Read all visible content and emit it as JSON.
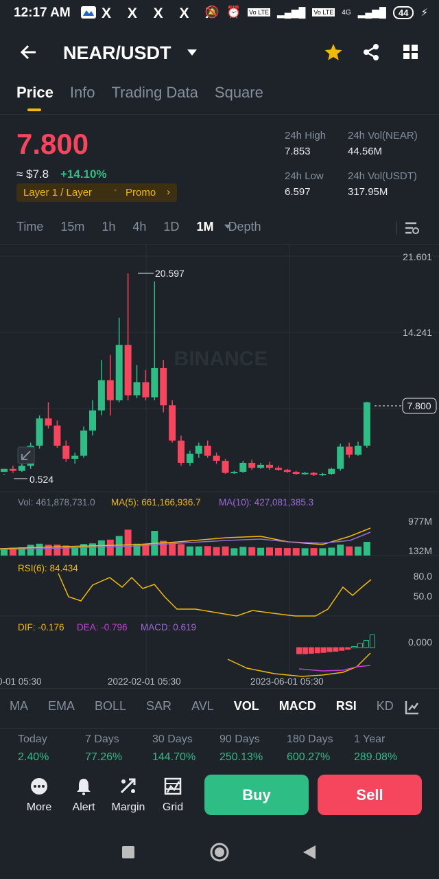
{
  "status_bar": {
    "time": "12:17 AM",
    "x_icons": "X X X X X",
    "lte1": "Vo LTE",
    "lte2": "Vo LTE",
    "net": "4G",
    "battery": "44"
  },
  "header": {
    "title": "NEAR/USDT"
  },
  "tabs": [
    "Price",
    "Info",
    "Trading Data",
    "Square"
  ],
  "price": {
    "last": "7.800",
    "usd": "≈ $7.8",
    "change": "+14.10%",
    "tag": "Layer 1 / Layer",
    "promo": "Promo",
    "high_label": "24h High",
    "high": "7.853",
    "low_label": "24h Low",
    "low": "6.597",
    "vol_base_label": "24h Vol(NEAR)",
    "vol_base": "44.56M",
    "vol_quote_label": "24h Vol(USDT)",
    "vol_quote": "317.95M"
  },
  "timeframes": [
    "Time",
    "15m",
    "1h",
    "4h",
    "1D",
    "1M",
    "Depth"
  ],
  "chart": {
    "y_ticks": [
      "21.601",
      "14.241"
    ],
    "max_label": "20.597",
    "min_label": "0.524",
    "last_label": "7.800",
    "watermark": "BINANCE",
    "vol_text": "Vol: 461,878,731.0",
    "ma5_text": "MA(5): 661,166,936.7",
    "ma10_text": "MA(10): 427,081,385.3",
    "vol_ticks": [
      "977M",
      "132M"
    ],
    "rsi_text": "RSI(6): 84.434",
    "rsi_ticks": [
      "80.0",
      "50.0"
    ],
    "dif_text": "DIF: -0.176",
    "dea_text": "DEA: -0.796",
    "macd_text": "MACD: 0.619",
    "macd_tick": "0.000",
    "x_labels": [
      "0-01 05:30",
      "2022-02-01 05:30",
      "2023-06-01 05:30"
    ],
    "colors": {
      "up": "#2ebd85",
      "down": "#f6465d",
      "ma5": "#f0b90b",
      "ma10": "#9c6bd8"
    }
  },
  "indicators": [
    "MA",
    "EMA",
    "BOLL",
    "SAR",
    "AVL",
    "VOL",
    "MACD",
    "RSI",
    "KD"
  ],
  "performance": [
    {
      "label": "Today",
      "value": "2.40%"
    },
    {
      "label": "7 Days",
      "value": "77.26%"
    },
    {
      "label": "30 Days",
      "value": "144.70%"
    },
    {
      "label": "90 Days",
      "value": "250.13%"
    },
    {
      "label": "180 Days",
      "value": "600.27%"
    },
    {
      "label": "1 Year",
      "value": "289.08%"
    }
  ],
  "actions": {
    "more": "More",
    "alert": "Alert",
    "margin": "Margin",
    "grid": "Grid",
    "buy": "Buy",
    "sell": "Sell"
  },
  "chart_data": {
    "type": "candlestick",
    "series": [
      {
        "values": [
          [
            0.9,
            1.2,
            0.7,
            0.6
          ],
          [
            1.2,
            1.0,
            1.5,
            0.8
          ],
          [
            1.0,
            1.5,
            1.8,
            0.9
          ],
          [
            1.5,
            3.5,
            3.8,
            1.2
          ],
          [
            3.5,
            6.2,
            6.5,
            3.2
          ],
          [
            6.2,
            5.5,
            7.8,
            5.2
          ],
          [
            5.5,
            3.5,
            6.0,
            3.3
          ],
          [
            3.5,
            2.2,
            4.0,
            1.9
          ],
          [
            2.2,
            2.5,
            2.8,
            1.7
          ],
          [
            2.5,
            5.0,
            5.4,
            2.3
          ],
          [
            5.0,
            7.0,
            8.0,
            4.5
          ],
          [
            7.0,
            10.0,
            12.0,
            6.5
          ],
          [
            10.0,
            8.0,
            12.5,
            6.5
          ],
          [
            8.0,
            13.5,
            16.2,
            7.8
          ],
          [
            13.5,
            8.5,
            20.6,
            8.0
          ],
          [
            8.5,
            9.8,
            11.5,
            8.2
          ],
          [
            9.8,
            8.3,
            11.0,
            8.0
          ],
          [
            8.3,
            11.2,
            19.8,
            8.0
          ],
          [
            11.2,
            7.5,
            12.0,
            6.8
          ],
          [
            7.5,
            4.0,
            8.0,
            3.8
          ],
          [
            4.0,
            1.8,
            4.5,
            1.5
          ],
          [
            1.8,
            2.7,
            3.0,
            1.5
          ],
          [
            2.7,
            3.5,
            3.8,
            2.3
          ],
          [
            3.5,
            2.5,
            4.0,
            2.3
          ],
          [
            2.5,
            2.0,
            2.8,
            1.7
          ],
          [
            2.0,
            0.8,
            2.2,
            0.7
          ],
          [
            0.8,
            0.9,
            1.0,
            0.7
          ],
          [
            0.9,
            1.8,
            2.0,
            0.8
          ],
          [
            1.8,
            1.3,
            2.1,
            1.1
          ],
          [
            1.3,
            1.6,
            1.8,
            1.2
          ],
          [
            1.6,
            1.3,
            1.9,
            1.1
          ],
          [
            1.3,
            1.1,
            1.5,
            1.0
          ],
          [
            1.1,
            0.9,
            1.2,
            0.8
          ],
          [
            0.9,
            0.7,
            1.0,
            0.6
          ],
          [
            0.7,
            0.8,
            0.9,
            0.6
          ],
          [
            0.8,
            0.6,
            0.9,
            0.5
          ],
          [
            0.6,
            0.7,
            0.8,
            0.5
          ],
          [
            0.7,
            1.2,
            1.3,
            0.6
          ],
          [
            1.2,
            3.4,
            3.7,
            1.0
          ],
          [
            3.4,
            2.6,
            3.8,
            2.3
          ],
          [
            2.6,
            3.5,
            3.9,
            2.5
          ],
          [
            3.5,
            7.8,
            7.85,
            3.3
          ]
        ]
      }
    ]
  }
}
